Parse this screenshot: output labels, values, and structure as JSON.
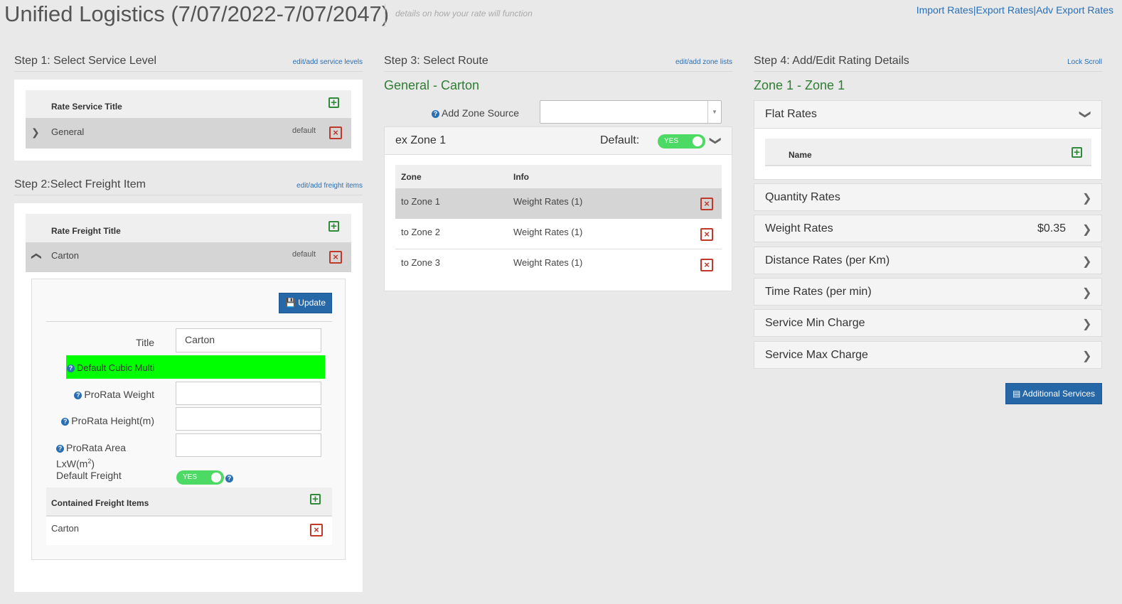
{
  "header": {
    "title": "Unified Logistics (7/07/2022-7/07/2047)",
    "subtitle": "details on how your rate will function",
    "links": [
      "Import Rates",
      "Export Rates",
      "Adv Export Rates"
    ],
    "separator": "|"
  },
  "step1": {
    "heading": "Step 1: Select Service Level",
    "link": "edit/add service levels",
    "column_header": "Rate Service Title",
    "rows": [
      {
        "title": "General",
        "tag": "default"
      }
    ]
  },
  "step2": {
    "heading": "Step 2:Select Freight Item",
    "link": "edit/add freight items",
    "column_header": "Rate Freight Title",
    "rows": [
      {
        "title": "Carton",
        "tag": "default"
      }
    ],
    "form": {
      "update_label": "Update",
      "title_label": "Title",
      "title_value": "Carton",
      "cubic_label": "Default Cubic Multi",
      "prorata_weight_label": "ProRata Weight",
      "prorata_height_label": "ProRata Height(m)",
      "prorata_area_label": "ProRata Area LxW(m",
      "prorata_area_sup": "2",
      "prorata_area_close": ")",
      "default_freight_label": "Default Freight",
      "default_freight_toggle": "YES",
      "contained_header": "Contained Freight Items",
      "contained_items": [
        "Carton"
      ]
    }
  },
  "step3": {
    "heading": "Step 3: Select Route",
    "link": "edit/add zone lists",
    "route_title": "General - Carton",
    "zone_source_label": "Add Zone Source",
    "zone_source_value": "",
    "zone_panel_title": "ex Zone 1",
    "default_label": "Default:",
    "default_toggle": "YES",
    "columns": [
      "Zone",
      "Info"
    ],
    "rows": [
      {
        "zone": "to Zone 1",
        "info": "Weight Rates (1)"
      },
      {
        "zone": "to Zone 2",
        "info": "Weight Rates (1)"
      },
      {
        "zone": "to Zone 3",
        "info": "Weight Rates (1)"
      }
    ]
  },
  "step4": {
    "heading": "Step 4: Add/Edit Rating Details",
    "link": "Lock Scroll",
    "zone_title": "Zone 1 - Zone 1",
    "flat_rates": {
      "title": "Flat Rates",
      "column": "Name"
    },
    "sections": [
      {
        "title": "Quantity Rates",
        "value": ""
      },
      {
        "title": "Weight Rates",
        "value": "$0.35"
      },
      {
        "title": "Distance Rates (per Km)",
        "value": ""
      },
      {
        "title": "Time Rates (per min)",
        "value": ""
      },
      {
        "title": "Service Min Charge",
        "value": ""
      },
      {
        "title": "Service Max Charge",
        "value": ""
      }
    ],
    "additional_services_label": "Additional Services"
  },
  "colors": {
    "accent_blue": "#2667a8",
    "green_title": "#2e7d32",
    "highlight_green": "#00ff00",
    "toggle_green": "#4cd964",
    "delete_red": "#c0392b"
  }
}
